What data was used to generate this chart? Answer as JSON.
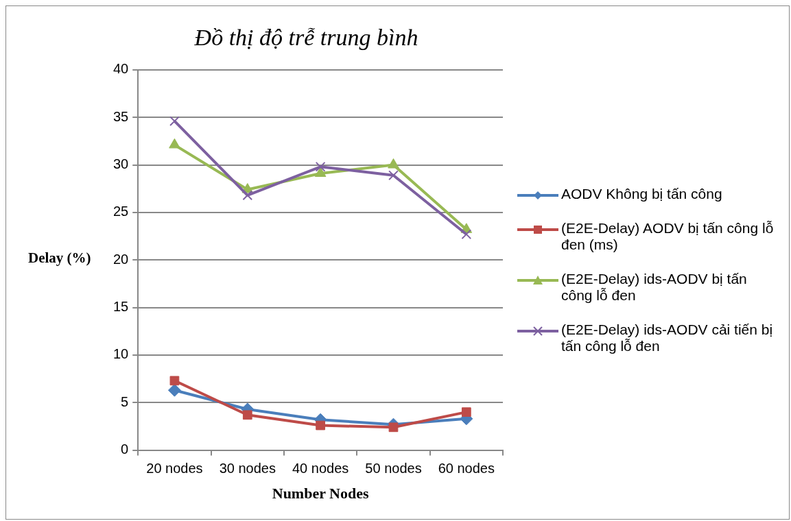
{
  "chart_data": {
    "type": "line",
    "title": "Đồ thị độ trễ trung bình",
    "xlabel": "Number Nodes",
    "ylabel": "Delay (%)",
    "categories": [
      "20 nodes",
      "30 nodes",
      "40 nodes",
      "50 nodes",
      "60 nodes"
    ],
    "ylim": [
      0,
      40
    ],
    "yticks": [
      0,
      5,
      10,
      15,
      20,
      25,
      30,
      35,
      40
    ],
    "grid": "y",
    "legend": "right",
    "line_style": "solid",
    "series": [
      {
        "name": "AODV Không bị tấn công",
        "color": "#4a7ebb",
        "marker": "diamond",
        "values": [
          6.3,
          4.3,
          3.2,
          2.7,
          3.3
        ]
      },
      {
        "name": "(E2E-Delay) AODV bị tấn công lỗ đen (ms)",
        "color": "#be4b48",
        "marker": "square",
        "values": [
          7.3,
          3.7,
          2.6,
          2.4,
          4.0
        ]
      },
      {
        "name": "(E2E-Delay) ids-AODV bị tấn công lỗ đen",
        "color": "#98b954",
        "marker": "triangle",
        "values": [
          32.1,
          27.4,
          29.1,
          30.0,
          23.2
        ]
      },
      {
        "name": "(E2E-Delay) ids-AODV cải tiến bị tấn công lỗ đen",
        "color": "#7d60a0",
        "marker": "cross",
        "values": [
          34.6,
          26.8,
          29.8,
          28.9,
          22.7
        ]
      }
    ]
  }
}
